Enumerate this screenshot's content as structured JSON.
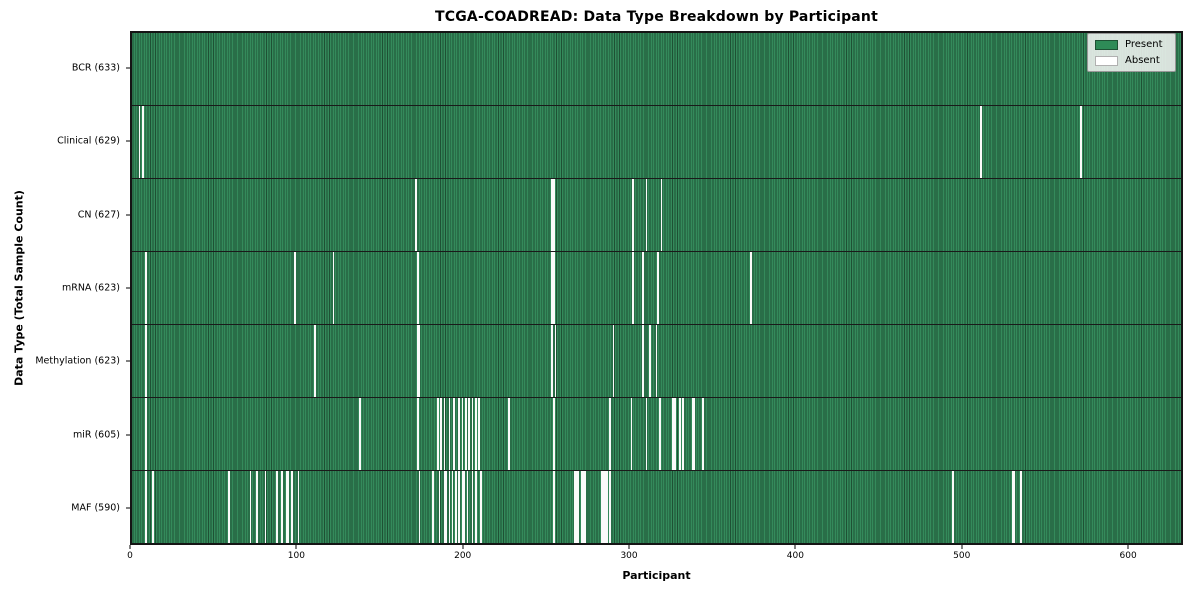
{
  "colors": {
    "present": "#348a5b",
    "present_edge": "#1e5134",
    "absent": "#fafafa",
    "absent_swatch": "#ffffff",
    "absent_swatch_edge": "#b0b0b0",
    "plot_border": "#151515",
    "row_separator": "#1a1a1a"
  },
  "legend": {
    "items": [
      {
        "label": "Present",
        "color": "#2e8b57",
        "edge": "#1e5134"
      },
      {
        "label": "Absent",
        "color": "#ffffff",
        "edge": "#b0b0b0"
      }
    ]
  },
  "chart_data": {
    "type": "heatmap",
    "title": "TCGA-COADREAD: Data Type Breakdown by Participant",
    "xlabel": "Participant",
    "ylabel": "Data Type (Total Sample Count)",
    "x_range": [
      0,
      633
    ],
    "x_ticks": [
      0,
      100,
      200,
      300,
      400,
      500,
      600
    ],
    "n_participants": 633,
    "legend_entries": [
      "Present",
      "Absent"
    ],
    "legend_position": "upper right",
    "grid": false,
    "rows": [
      {
        "name": "BCR",
        "label": "BCR (633)",
        "total": 633,
        "absent": []
      },
      {
        "name": "Clinical",
        "label": "Clinical (629)",
        "total": 629,
        "absent": [
          4,
          6,
          512,
          572
        ]
      },
      {
        "name": "CN",
        "label": "CN (627)",
        "total": 627,
        "absent": [
          171,
          253,
          254,
          302,
          310,
          319
        ]
      },
      {
        "name": "mRNA",
        "label": "mRNA (623)",
        "total": 623,
        "absent": [
          8,
          98,
          121,
          172,
          253,
          254,
          302,
          308,
          317,
          373
        ]
      },
      {
        "name": "Methylation",
        "label": "Methylation (623)",
        "total": 623,
        "absent": [
          8,
          110,
          172,
          173,
          253,
          255,
          290,
          308,
          312,
          316
        ]
      },
      {
        "name": "miR",
        "label": "miR (605)",
        "total": 605,
        "absent": [
          8,
          137,
          172,
          184,
          186,
          188,
          191,
          194,
          197,
          199,
          201,
          203,
          205,
          207,
          209,
          227,
          254,
          288,
          301,
          310,
          318,
          326,
          327,
          330,
          332,
          338,
          339,
          344
        ]
      },
      {
        "name": "MAF",
        "label": "MAF (590)",
        "total": 590,
        "absent": [
          8,
          12,
          58,
          71,
          75,
          80,
          87,
          90,
          93,
          94,
          96,
          100,
          173,
          181,
          185,
          188,
          189,
          191,
          193,
          195,
          197,
          199,
          200,
          202,
          205,
          207,
          210,
          254,
          267,
          268,
          269,
          271,
          272,
          273,
          283,
          284,
          285,
          286,
          288,
          495,
          531,
          532,
          536
        ]
      }
    ]
  }
}
